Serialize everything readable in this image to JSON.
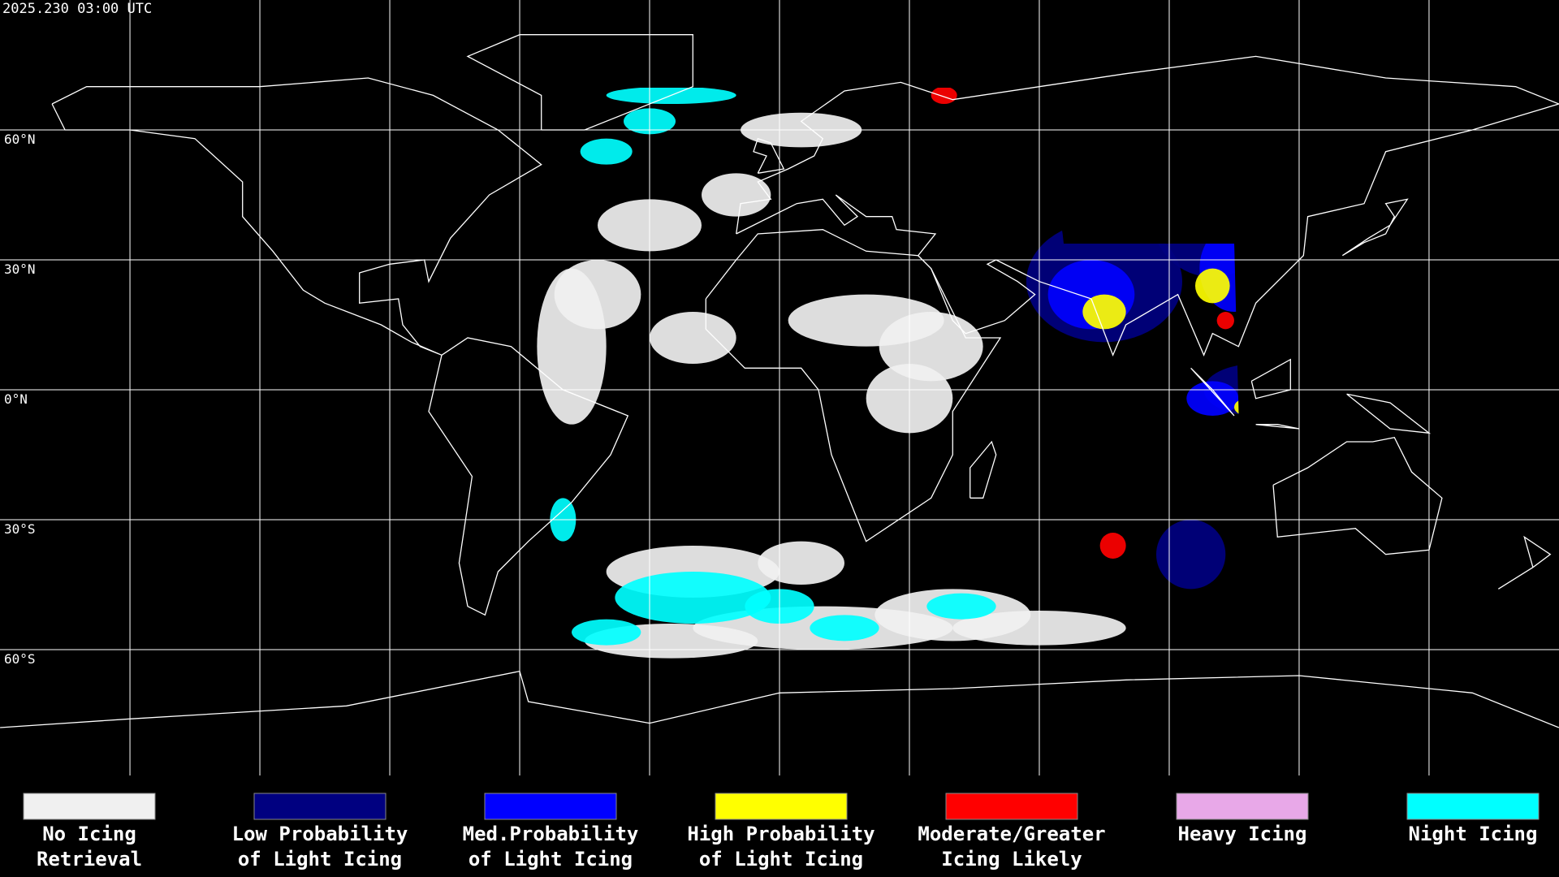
{
  "timestamp": "2025.230 03:00 UTC",
  "lat_labels": [
    "60°N",
    "30°N",
    "0°N",
    "30°S",
    "60°S"
  ],
  "legend": [
    {
      "color": "#f0f0f0",
      "lines": [
        "No Icing",
        "Retrieval"
      ]
    },
    {
      "color": "#000080",
      "lines": [
        "Low Probability",
        "of Light Icing"
      ]
    },
    {
      "color": "#0000ff",
      "lines": [
        "Med.Probability",
        "of Light Icing"
      ]
    },
    {
      "color": "#ffff00",
      "lines": [
        "High Probability",
        "of Light Icing"
      ]
    },
    {
      "color": "#ff0000",
      "lines": [
        "Moderate/Greater",
        "Icing Likely"
      ]
    },
    {
      "color": "#e8a8e8",
      "lines": [
        "Heavy Icing"
      ]
    },
    {
      "color": "#00ffff",
      "lines": [
        "Night Icing"
      ]
    }
  ]
}
